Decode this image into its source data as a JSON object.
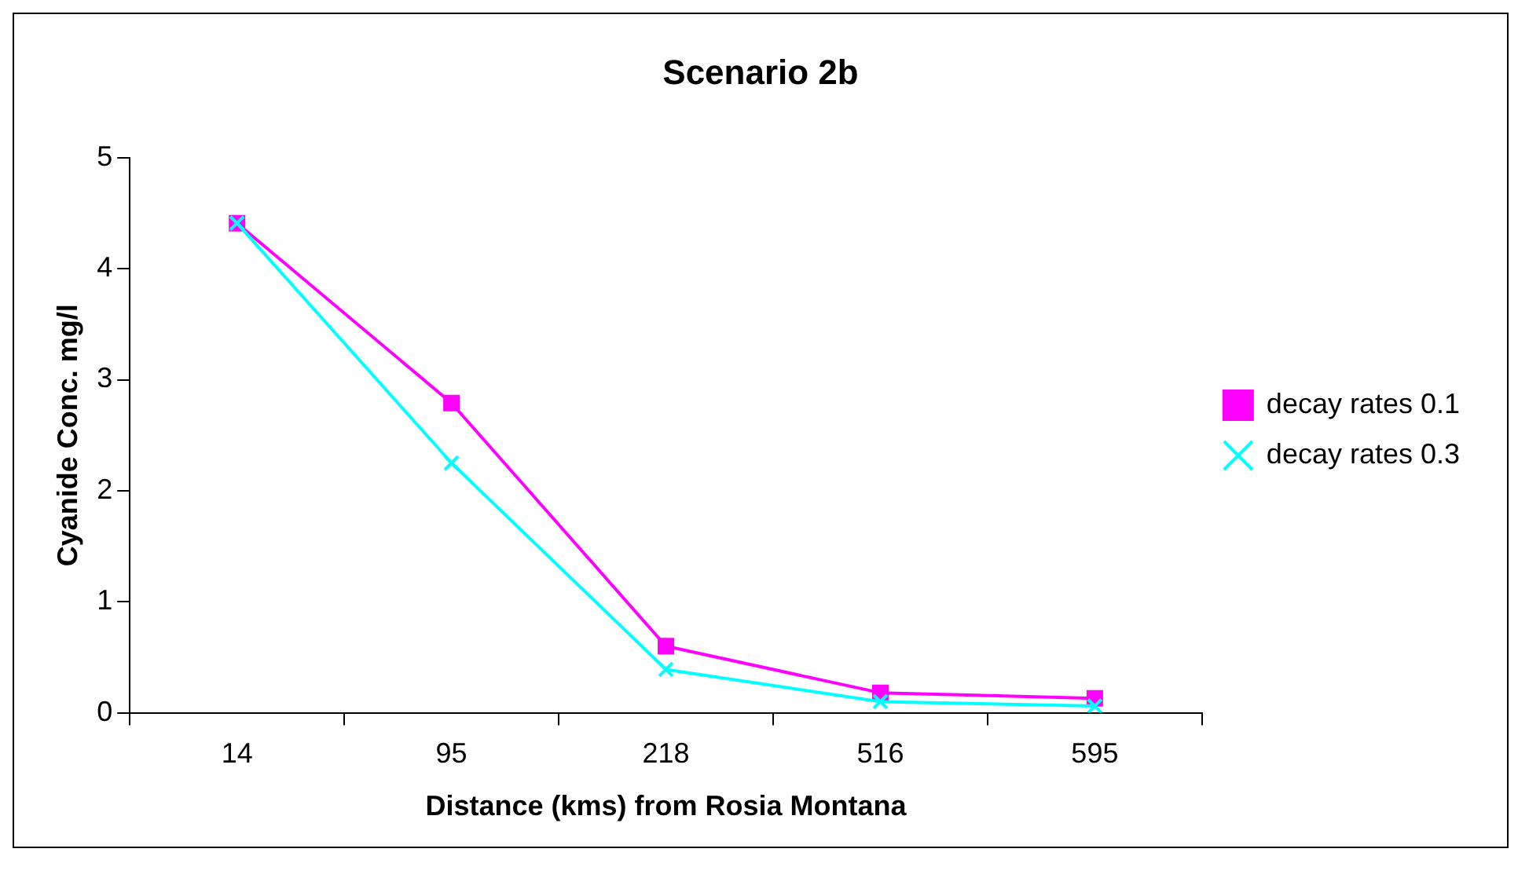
{
  "chart_data": {
    "type": "line",
    "title": "Scenario 2b",
    "xlabel": "Distance (kms) from Rosia Montana",
    "ylabel": "Cyanide Conc. mg/l",
    "categories": [
      "14",
      "95",
      "218",
      "516",
      "595"
    ],
    "series": [
      {
        "name": "decay rates 0.1",
        "color": "#ff00ff",
        "marker": "square",
        "values": [
          4.41,
          2.79,
          0.6,
          0.18,
          0.13
        ]
      },
      {
        "name": "decay rates 0.3",
        "color": "#00ffff",
        "marker": "cross",
        "values": [
          4.41,
          2.25,
          0.39,
          0.1,
          0.06
        ]
      }
    ],
    "ylim": [
      0,
      5
    ],
    "yticks": [
      0,
      1,
      2,
      3,
      4,
      5
    ],
    "grid": false,
    "legend": "right"
  }
}
